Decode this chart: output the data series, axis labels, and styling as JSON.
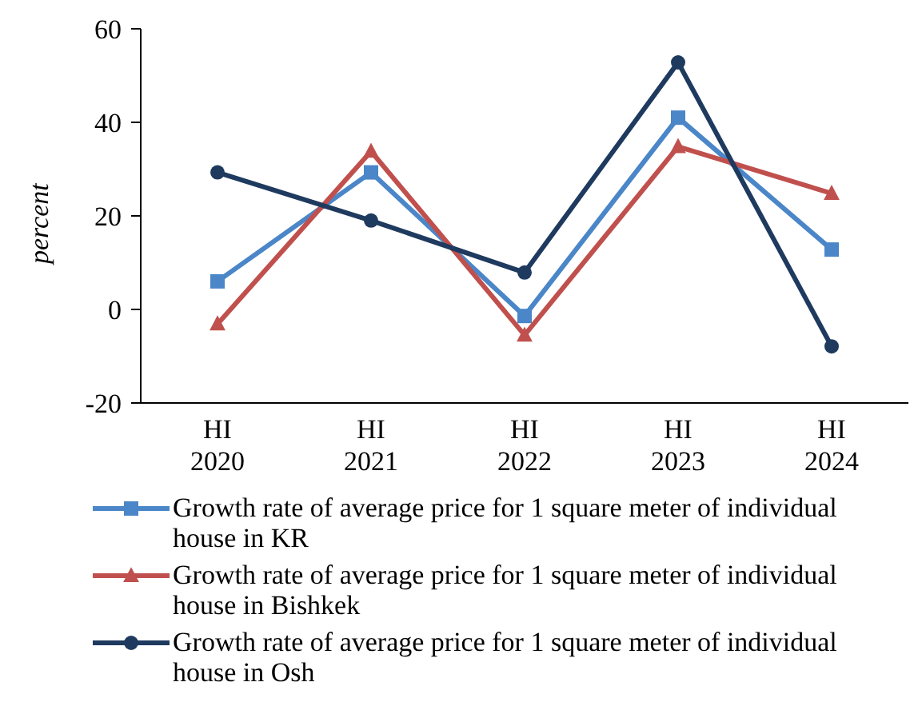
{
  "chart_data": {
    "type": "line",
    "ylabel": "percent",
    "categories": [
      "HI 2020",
      "HI 2021",
      "HI 2022",
      "HI 2023",
      "HI 2024"
    ],
    "ylim": [
      -20,
      60
    ],
    "yticks": [
      -20,
      0,
      20,
      40,
      60
    ],
    "grid": false,
    "legend": "bottom",
    "line_style": "solid",
    "series": [
      {
        "name": "Growth rate of average price for 1 square meter of individual house in KR",
        "color": "#4a86c8",
        "marker": "square",
        "values": [
          6,
          29.3,
          -1.4,
          41,
          12.8
        ]
      },
      {
        "name": "Growth rate of average price for 1 square meter of individual house in Bishkek",
        "color": "#c0504d",
        "marker": "triangle",
        "values": [
          -3.1,
          33.8,
          -5.5,
          34.8,
          24.8
        ]
      },
      {
        "name": "Growth rate of average price for 1 square meter of individual house in Osh",
        "color": "#1f3a5f",
        "marker": "circle",
        "values": [
          29.3,
          19,
          7.9,
          52.8,
          -7.9
        ]
      }
    ]
  }
}
